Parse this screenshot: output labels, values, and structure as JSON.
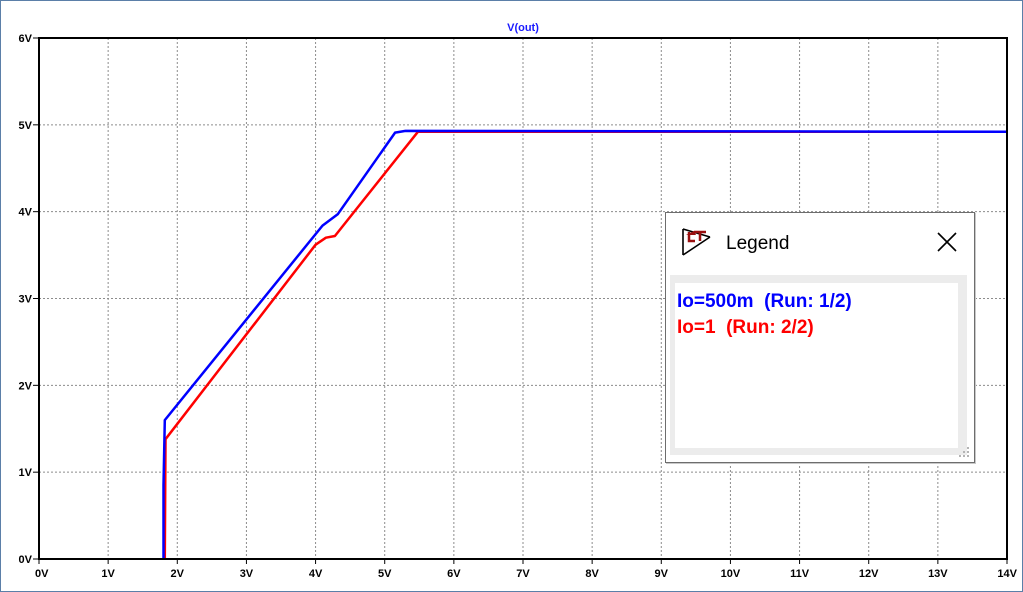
{
  "chart_data": {
    "type": "line",
    "title": "V(out)",
    "title_color": "#1a1aff",
    "xlabel": "",
    "ylabel": "",
    "xlim": [
      0,
      14
    ],
    "ylim": [
      0,
      6
    ],
    "grid": true,
    "x_ticks": [
      0,
      1,
      2,
      3,
      4,
      5,
      6,
      7,
      8,
      9,
      10,
      11,
      12,
      13,
      14
    ],
    "y_ticks": [
      0,
      1,
      2,
      3,
      4,
      5,
      6
    ],
    "x_tick_labels": [
      "0V",
      "1V",
      "2V",
      "3V",
      "4V",
      "5V",
      "6V",
      "7V",
      "8V",
      "9V",
      "10V",
      "11V",
      "12V",
      "13V",
      "14V"
    ],
    "y_tick_labels": [
      "0V",
      "1V",
      "2V",
      "3V",
      "4V",
      "5V",
      "6V"
    ],
    "legend_position": "right",
    "series": [
      {
        "name": "Io=500m  (Run: 1/2)",
        "color": "#0000ff",
        "points": [
          [
            1.8,
            0.0
          ],
          [
            1.8,
            0.6
          ],
          [
            1.8,
            0.85
          ],
          [
            1.82,
            1.6
          ],
          [
            4.1,
            3.84
          ],
          [
            4.32,
            3.97
          ],
          [
            5.15,
            4.91
          ],
          [
            5.3,
            4.93
          ],
          [
            14.0,
            4.92
          ]
        ]
      },
      {
        "name": "Io=1  (Run: 2/2)",
        "color": "#ff0000",
        "points": [
          [
            1.82,
            0.0
          ],
          [
            1.83,
            1.38
          ],
          [
            4.0,
            3.62
          ],
          [
            4.15,
            3.7
          ],
          [
            4.28,
            3.72
          ],
          [
            5.48,
            4.92
          ],
          [
            14.0,
            4.92
          ]
        ]
      }
    ]
  },
  "legend": {
    "title": "Legend",
    "close_icon": "close-icon",
    "logo_icon": "ltspice-logo-icon"
  }
}
